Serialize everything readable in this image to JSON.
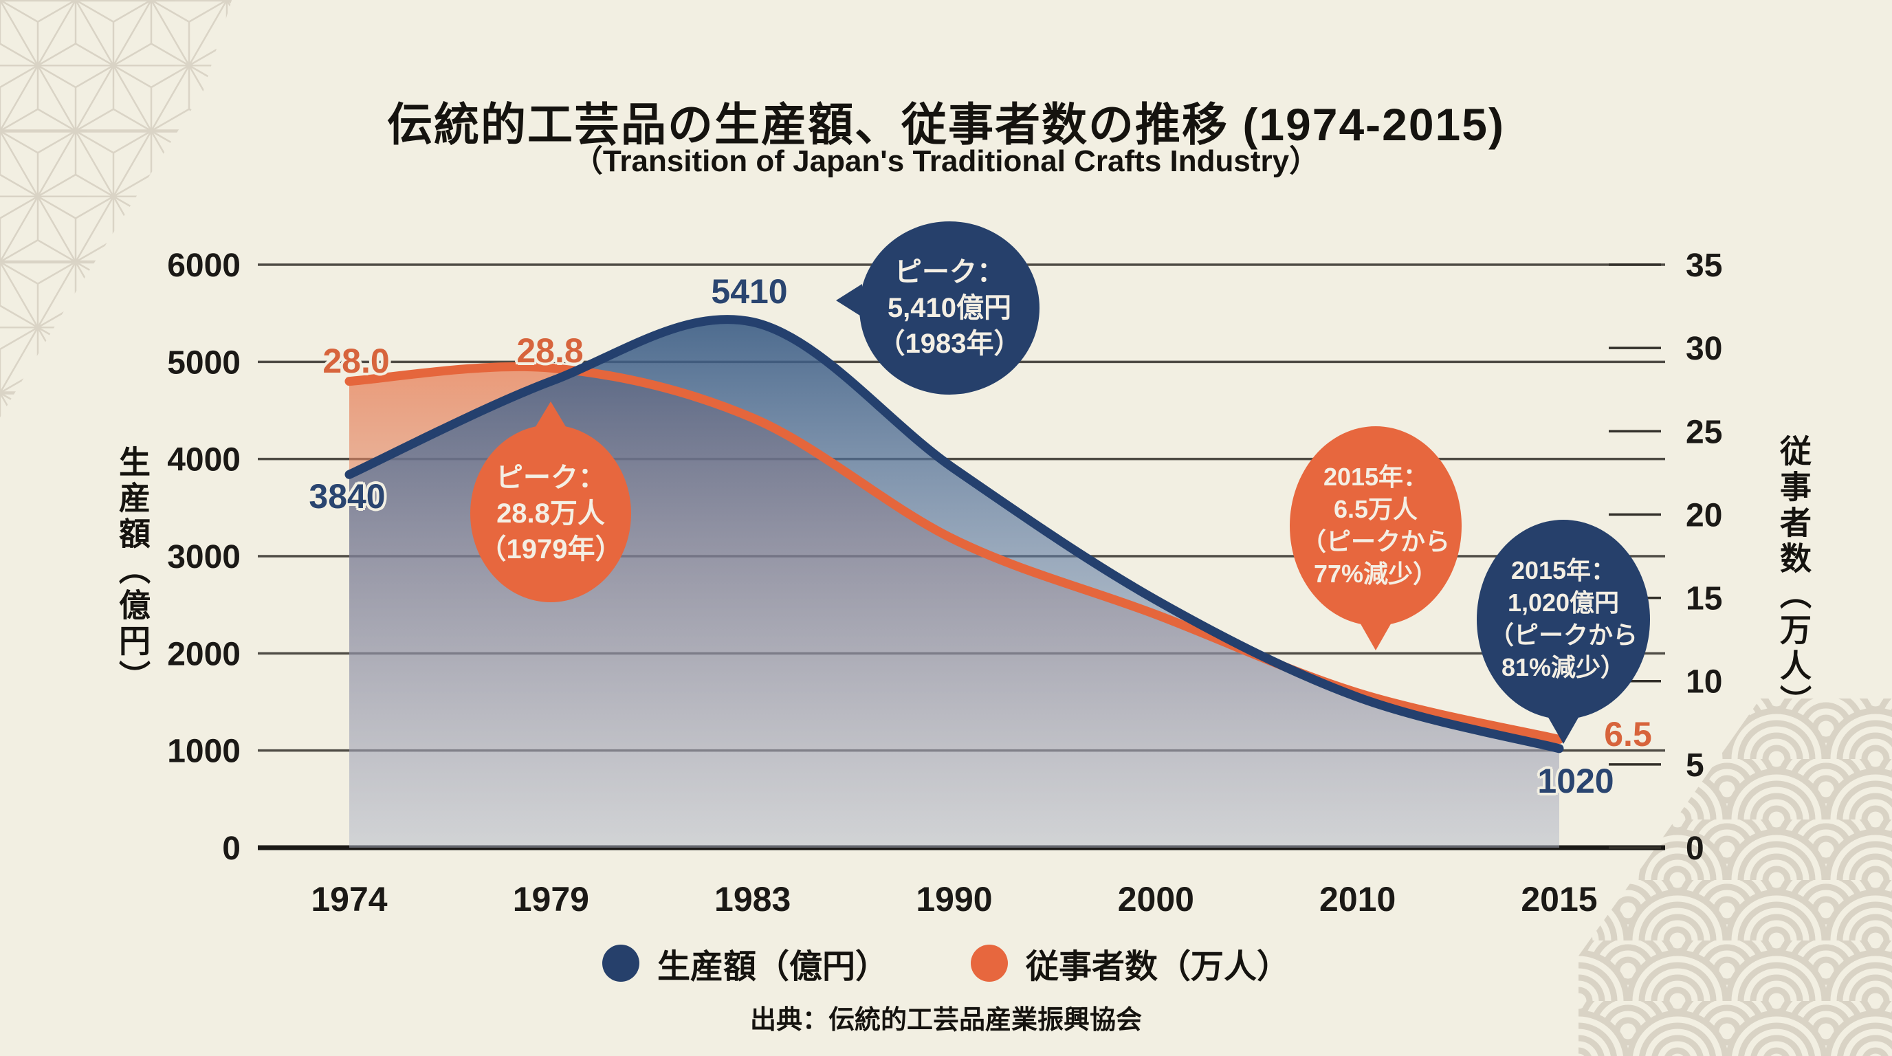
{
  "title": "伝統的工芸品の生産額、従事者数の推移 (1974-2015)",
  "subtitle": "（Transition of Japan's Traditional Crafts Industry）",
  "source": "出典：伝統的工芸品産業振興協会",
  "colors": {
    "background": "#f2efe2",
    "navy": "#26406b",
    "orange": "#e7673e",
    "grid": "#33302a",
    "navy_text": "#2a4570",
    "orange_text": "#d7643c",
    "pattern": "#d8d2c4"
  },
  "chart_data": {
    "type": "area",
    "categories": [
      "1974",
      "1979",
      "1983",
      "1990",
      "2000",
      "2010",
      "2015"
    ],
    "series": [
      {
        "name": "生産額（億円）",
        "axis": "left",
        "color": "#24406e",
        "values": [
          3840,
          4800,
          5410,
          3900,
          2550,
          1550,
          1020
        ]
      },
      {
        "name": "従事者数（万人）",
        "axis": "right",
        "color": "#e5663c",
        "values": [
          28.0,
          28.8,
          25.8,
          18.5,
          14.0,
          9.3,
          6.5
        ]
      }
    ],
    "left_axis": {
      "title": "生産額（億円）",
      "range": [
        0,
        6000
      ],
      "ticks": [
        0,
        1000,
        2000,
        3000,
        4000,
        5000,
        6000
      ]
    },
    "right_axis": {
      "title": "従事者数（万人）",
      "range": [
        0,
        35
      ],
      "ticks": [
        0,
        5,
        10,
        15,
        20,
        25,
        30,
        35
      ]
    },
    "grid": true,
    "legend_position": "bottom"
  },
  "chart_labels": {
    "workers_1974": "28.0",
    "workers_peak": "28.8",
    "workers_2015": "6.5",
    "production_1974": "3840",
    "production_peak": "5410",
    "production_2015": "1020"
  },
  "annotations": {
    "production_peak": {
      "lines": [
        "ピーク：",
        "5,410億円",
        "（1983年）"
      ]
    },
    "workers_peak": {
      "lines": [
        "ピーク：",
        "28.8万人",
        "（1979年）"
      ]
    },
    "workers_2015": {
      "lines": [
        "2015年：",
        "6.5万人",
        "（ピークから",
        "77%減少）"
      ]
    },
    "production_2015": {
      "lines": [
        "2015年：",
        "1,020億円",
        "（ピークから",
        "81%減少）"
      ]
    }
  },
  "legend": {
    "production": "生産額（億円）",
    "workers": "従事者数（万人）"
  }
}
